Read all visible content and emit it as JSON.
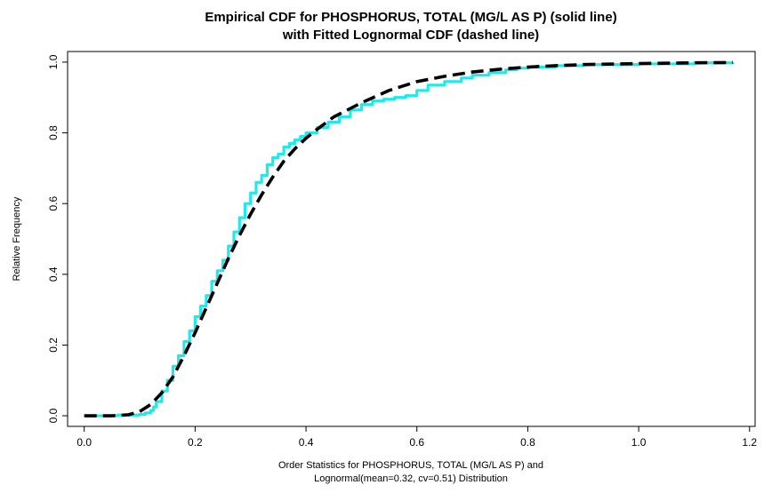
{
  "chart_data": {
    "type": "line",
    "title_line1": "Empirical CDF for PHOSPHORUS, TOTAL (MG/L AS P) (solid line)",
    "title_line2": "with Fitted Lognormal CDF (dashed line)",
    "xlabel_line1": "Order Statistics for PHOSPHORUS, TOTAL (MG/L AS P) and",
    "xlabel_line2": "Lognormal(mean=0.32, cv=0.51) Distribution",
    "ylabel": "Relative Frequency",
    "xlim": [
      -0.03,
      1.21
    ],
    "ylim": [
      -0.03,
      1.03
    ],
    "x_ticks": [
      0.0,
      0.2,
      0.4,
      0.6,
      0.8,
      1.0,
      1.2
    ],
    "x_tick_labels": [
      "0.0",
      "0.2",
      "0.4",
      "0.6",
      "0.8",
      "1.0",
      "1.2"
    ],
    "y_ticks": [
      0.0,
      0.2,
      0.4,
      0.6,
      0.8,
      1.0
    ],
    "y_tick_labels": [
      "0.0",
      "0.2",
      "0.4",
      "0.6",
      "0.8",
      "1.0"
    ],
    "grid": false,
    "series": [
      {
        "style": "solid",
        "color": "#22e8ee",
        "x": [
          0.0,
          0.06,
          0.1,
          0.11,
          0.12,
          0.125,
          0.13,
          0.14,
          0.15,
          0.16,
          0.17,
          0.18,
          0.19,
          0.2,
          0.21,
          0.22,
          0.23,
          0.24,
          0.25,
          0.26,
          0.27,
          0.28,
          0.29,
          0.3,
          0.31,
          0.32,
          0.33,
          0.34,
          0.35,
          0.36,
          0.37,
          0.38,
          0.39,
          0.4,
          0.42,
          0.44,
          0.46,
          0.48,
          0.5,
          0.52,
          0.54,
          0.56,
          0.58,
          0.6,
          0.62,
          0.65,
          0.68,
          0.7,
          0.73,
          0.76,
          0.78,
          0.8,
          0.85,
          0.9,
          1.0,
          1.1,
          1.17
        ],
        "y": [
          0.0,
          0.002,
          0.004,
          0.008,
          0.015,
          0.025,
          0.04,
          0.07,
          0.1,
          0.14,
          0.17,
          0.21,
          0.24,
          0.28,
          0.31,
          0.34,
          0.38,
          0.41,
          0.44,
          0.48,
          0.52,
          0.56,
          0.6,
          0.63,
          0.66,
          0.68,
          0.71,
          0.73,
          0.74,
          0.76,
          0.77,
          0.78,
          0.79,
          0.8,
          0.815,
          0.83,
          0.845,
          0.865,
          0.88,
          0.89,
          0.895,
          0.9,
          0.905,
          0.92,
          0.935,
          0.945,
          0.955,
          0.963,
          0.97,
          0.978,
          0.983,
          0.986,
          0.99,
          0.993,
          0.995,
          0.998,
          0.999
        ]
      },
      {
        "style": "dashed",
        "color": "#000000",
        "x": [
          0.0,
          0.05,
          0.08,
          0.1,
          0.12,
          0.14,
          0.16,
          0.18,
          0.2,
          0.22,
          0.24,
          0.26,
          0.28,
          0.3,
          0.32,
          0.34,
          0.36,
          0.38,
          0.4,
          0.42,
          0.45,
          0.5,
          0.55,
          0.6,
          0.65,
          0.7,
          0.75,
          0.8,
          0.85,
          0.9,
          1.0,
          1.1,
          1.17
        ],
        "y": [
          0.0,
          0.0,
          0.003,
          0.012,
          0.032,
          0.065,
          0.11,
          0.17,
          0.235,
          0.305,
          0.375,
          0.445,
          0.51,
          0.57,
          0.625,
          0.675,
          0.72,
          0.755,
          0.785,
          0.81,
          0.845,
          0.885,
          0.92,
          0.945,
          0.96,
          0.972,
          0.98,
          0.986,
          0.99,
          0.993,
          0.996,
          0.998,
          0.999
        ]
      }
    ]
  }
}
